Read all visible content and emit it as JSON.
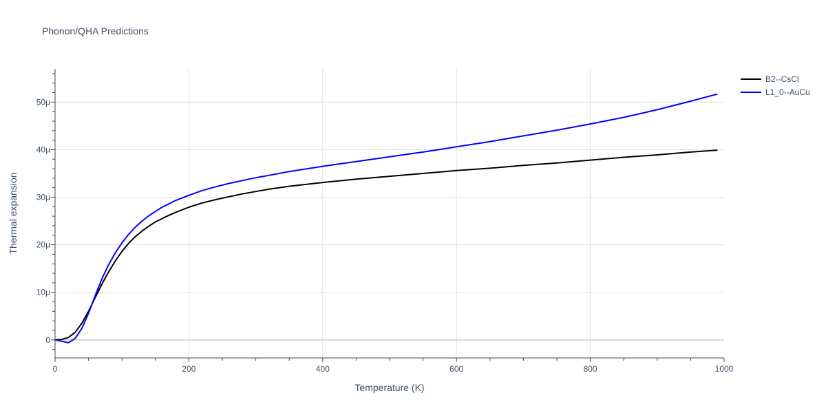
{
  "chart_data": {
    "type": "line",
    "title": "Phonon/QHA Predictions",
    "xlabel": "Temperature (K)",
    "ylabel": "Thermal expansion",
    "xlim": [
      0,
      1000
    ],
    "ylim": [
      -3.8,
      57
    ],
    "x_ticks": [
      0,
      200,
      400,
      600,
      800,
      1000
    ],
    "x_tick_labels": [
      "0",
      "200",
      "400",
      "600",
      "800",
      "1000"
    ],
    "y_ticks": [
      0,
      10,
      20,
      30,
      40,
      50
    ],
    "y_tick_labels": [
      "0",
      "10μ",
      "20μ",
      "30μ",
      "40μ",
      "50μ"
    ],
    "grid": true,
    "legend_position": "top-right",
    "series": [
      {
        "name": "B2--CsCl",
        "color": "#000000",
        "x": [
          0,
          10,
          20,
          30,
          40,
          50,
          60,
          70,
          80,
          90,
          100,
          110,
          120,
          130,
          140,
          150,
          160,
          170,
          180,
          200,
          220,
          240,
          260,
          280,
          300,
          320,
          350,
          400,
          450,
          500,
          550,
          600,
          650,
          700,
          750,
          800,
          850,
          900,
          950,
          990
        ],
        "y": [
          0,
          0.1,
          0.5,
          1.6,
          3.5,
          6.0,
          8.9,
          11.7,
          14.3,
          16.6,
          18.6,
          20.3,
          21.7,
          22.9,
          23.9,
          24.8,
          25.5,
          26.2,
          26.8,
          27.9,
          28.8,
          29.5,
          30.1,
          30.7,
          31.2,
          31.7,
          32.3,
          33.1,
          33.8,
          34.4,
          35.0,
          35.6,
          36.1,
          36.7,
          37.2,
          37.8,
          38.4,
          38.9,
          39.5,
          39.9
        ]
      },
      {
        "name": "L1_0--AuCu",
        "color": "#0000ff",
        "x": [
          0,
          10,
          20,
          30,
          40,
          50,
          60,
          70,
          80,
          90,
          100,
          110,
          120,
          130,
          140,
          150,
          160,
          170,
          180,
          200,
          220,
          240,
          260,
          280,
          300,
          320,
          350,
          400,
          450,
          500,
          550,
          600,
          650,
          700,
          750,
          800,
          850,
          900,
          950,
          990
        ],
        "y": [
          0,
          -0.3,
          -0.6,
          0.3,
          2.4,
          5.6,
          9.3,
          12.8,
          15.8,
          18.3,
          20.4,
          22.2,
          23.7,
          25.0,
          26.1,
          27.0,
          27.9,
          28.6,
          29.3,
          30.4,
          31.4,
          32.2,
          32.9,
          33.5,
          34.1,
          34.6,
          35.4,
          36.5,
          37.5,
          38.5,
          39.5,
          40.6,
          41.7,
          42.9,
          44.1,
          45.4,
          46.8,
          48.4,
          50.2,
          51.7
        ]
      }
    ]
  }
}
